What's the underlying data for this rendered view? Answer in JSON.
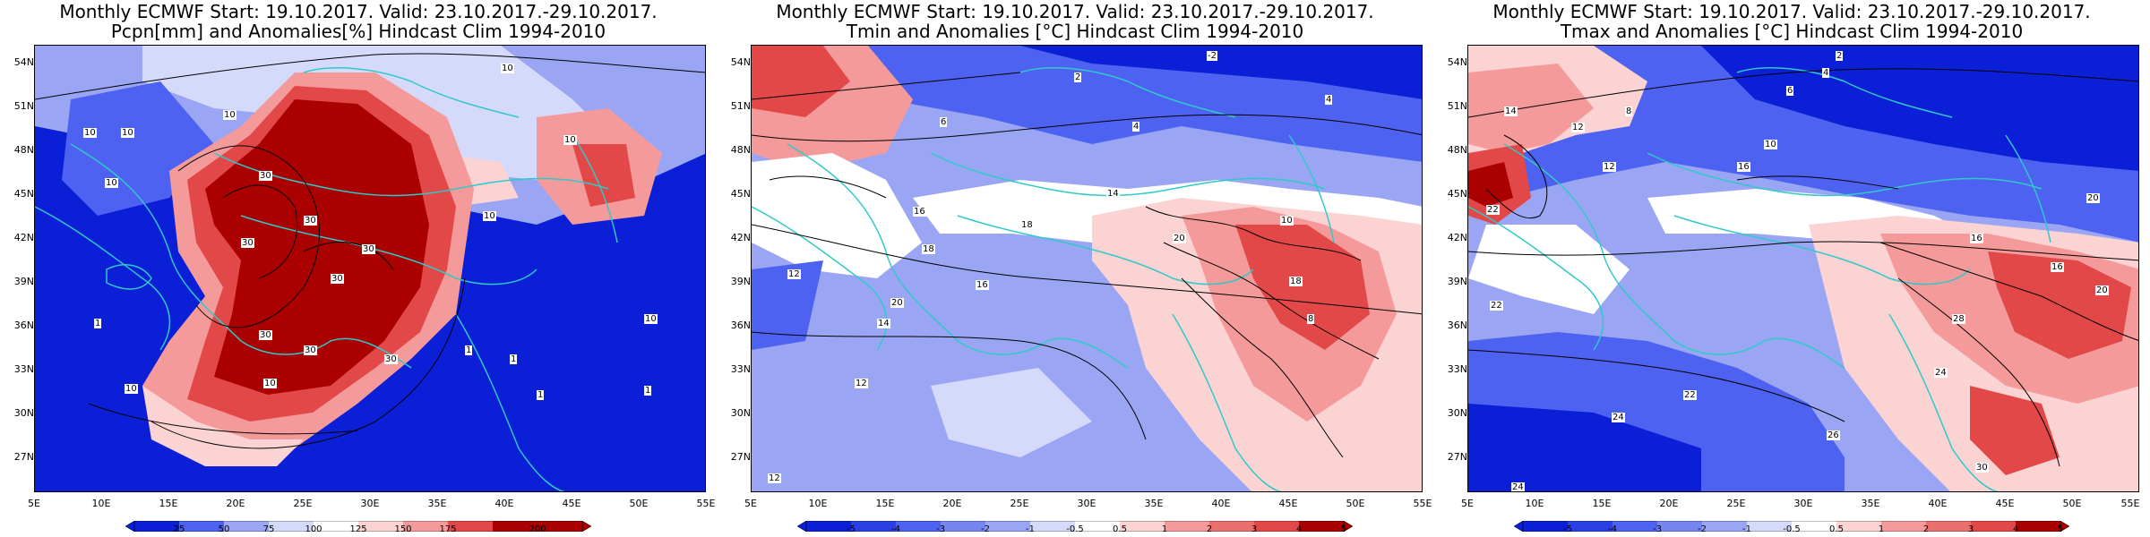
{
  "panels": [
    {
      "title1": "Monthly ECMWF Start: 19.10.2017. Valid: 23.10.2017.-29.10.2017.",
      "title2": "Pcpn[mm] and Anomalies[%] Hindcast Clim 1994-2010",
      "colorbar_labels": [
        "25",
        "50",
        "75",
        "100",
        "125",
        "150",
        "175",
        "200"
      ],
      "contour_labels": [
        "10",
        "10",
        "10",
        "10",
        "10",
        "10",
        "10",
        "30",
        "30",
        "30",
        "30",
        "30",
        "30",
        "30",
        "30",
        "10",
        "10",
        "1",
        "1",
        "1",
        "1",
        "1",
        "10"
      ]
    },
    {
      "title1": "Monthly ECMWF Start: 19.10.2017. Valid: 23.10.2017.-29.10.2017.",
      "title2": "Tmin and Anomalies [°C] Hindcast Clim 1994-2010",
      "colorbar_labels": [
        "-5",
        "-4",
        "-3",
        "-2",
        "-1",
        "-0.5",
        "0.5",
        "1",
        "2",
        "3",
        "4",
        "5"
      ],
      "contour_labels": [
        "-2",
        "2",
        "4",
        "6",
        "4",
        "14",
        "16",
        "18",
        "20",
        "12",
        "20",
        "18",
        "14",
        "16",
        "12",
        "10",
        "18",
        "8",
        "12"
      ]
    },
    {
      "title1": "Monthly ECMWF Start: 19.10.2017. Valid: 23.10.2017.-29.10.2017.",
      "title2": "Tmax and Anomalies [°C] Hindcast Clim 1994-2010",
      "colorbar_labels": [
        "-5",
        "-4",
        "-3",
        "-2",
        "-1",
        "-0.5",
        "0.5",
        "1",
        "2",
        "3",
        "4",
        "5"
      ],
      "contour_labels": [
        "2",
        "4",
        "6",
        "8",
        "10",
        "12",
        "14",
        "16",
        "12",
        "16",
        "20",
        "22",
        "22",
        "24",
        "26",
        "28",
        "30",
        "16",
        "20",
        "24",
        "22",
        "24"
      ]
    }
  ],
  "map_axes": {
    "lat_labels": [
      "54N",
      "51N",
      "48N",
      "45N",
      "42N",
      "39N",
      "36N",
      "33N",
      "30N",
      "27N"
    ],
    "lon_labels": [
      "5E",
      "10E",
      "15E",
      "20E",
      "25E",
      "30E",
      "35E",
      "40E",
      "45E",
      "50E",
      "55E"
    ]
  },
  "colors": {
    "deep_blue": "#0a1fd6",
    "mid_blue": "#4d62f0",
    "light_blue": "#9aa6f4",
    "pale_blue": "#d6dafa",
    "pale_red": "#fbd3d3",
    "light_red": "#f59a9a",
    "mid_red": "#e34848",
    "deep_red": "#aa0000",
    "coast": "#2fc9c9"
  }
}
